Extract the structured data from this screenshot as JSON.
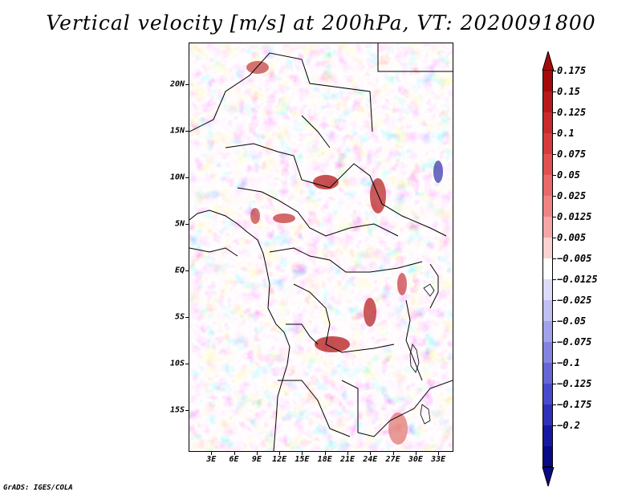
{
  "title": "Vertical velocity [m/s] at 200hPa, VT: 2020091800",
  "footer": "GrADS: IGES/COLA",
  "map": {
    "lat_labels": [
      "20N",
      "15N",
      "10N",
      "5N",
      "EQ",
      "5S",
      "10S",
      "15S"
    ],
    "lon_labels": [
      "3E",
      "6E",
      "9E",
      "12E",
      "15E",
      "18E",
      "21E",
      "24E",
      "27E",
      "30E",
      "33E"
    ],
    "lat_values": [
      20,
      15,
      10,
      5,
      0,
      -5,
      -10,
      -15
    ],
    "lon_values": [
      3,
      6,
      9,
      12,
      15,
      18,
      21,
      24,
      27,
      30,
      33
    ],
    "extent": {
      "lon_min": 0,
      "lon_max": 35,
      "lat_min": -19.5,
      "lat_max": 24.5
    }
  },
  "colorbar": {
    "labels": [
      "0.175",
      "0.15",
      "0.125",
      "0.1",
      "0.075",
      "0.05",
      "0.025",
      "0.0125",
      "0.005",
      "−0.005",
      "−0.0125",
      "−0.025",
      "−0.05",
      "−0.075",
      "−0.1",
      "−0.125",
      "−0.175",
      "−0.2"
    ],
    "colors": [
      "#a50a0a",
      "#b71a1a",
      "#c92a2a",
      "#d63c3c",
      "#e05252",
      "#e86a6a",
      "#f08484",
      "#f5a6a6",
      "#fad2d2",
      "#ffffff",
      "#dcdcfa",
      "#c0c0f2",
      "#a2a2ea",
      "#8484e0",
      "#6666d6",
      "#4a4acc",
      "#3030b8",
      "#1818a0",
      "#0a0a84"
    ],
    "top_color": "#a50a0a",
    "bottom_color": "#0a0a84"
  }
}
